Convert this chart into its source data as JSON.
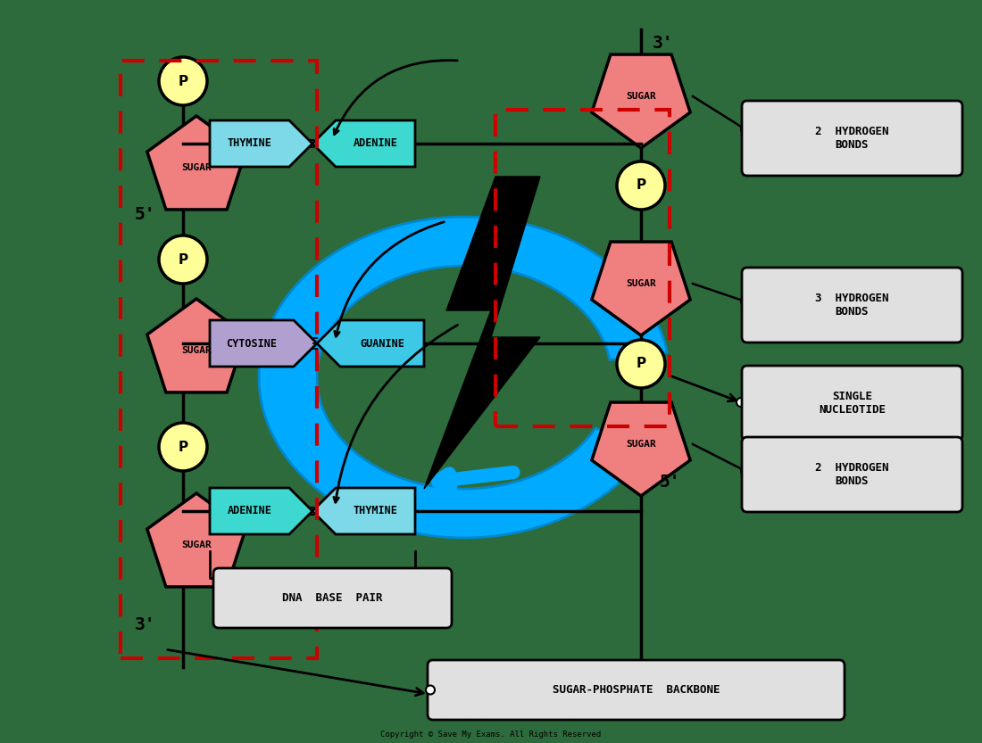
{
  "bg_color": "#2d6b3c",
  "sugar_color": "#f08080",
  "phosphate_color": "#ffff99",
  "thymine_color": "#7dd8e8",
  "adenine_color": "#3dd8d0",
  "cytosine_color": "#b0a0d0",
  "guanine_color": "#3dc8e8",
  "label_bg": "#e0e0e0",
  "dashed_red": "#cc0000",
  "bolt_color": "#111111",
  "swirl_color": "#00aaff",
  "title": "DNA  BASE  PAIR",
  "label_2h_top": "2  HYDROGEN\nBONDS",
  "label_3h": "3  HYDROGEN\nBONDS",
  "label_single": "SINGLE\nNUCLEOTIDE",
  "label_2h_bot": "2  HYDROGEN\nBONDS",
  "label_backbone": "o  SUGAR-PHOSPHATE  BACKBONE"
}
